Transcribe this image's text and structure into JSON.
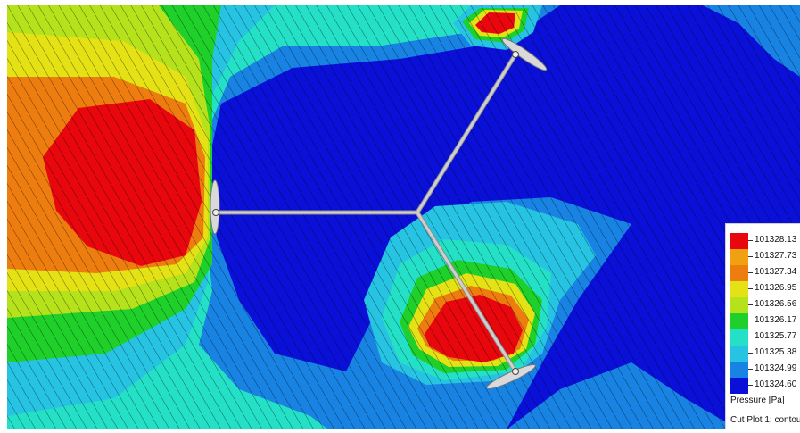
{
  "legend": {
    "values": [
      "101328.13",
      "101327.73",
      "101327.34",
      "101326.95",
      "101326.56",
      "101326.17",
      "101325.77",
      "101325.38",
      "101324.99",
      "101324.60"
    ],
    "colors": [
      "#e8070d",
      "#f0a010",
      "#ee7d10",
      "#e4e214",
      "#b6e21c",
      "#1fcf2a",
      "#24e0c6",
      "#26c4e2",
      "#1883e2",
      "#0a10d8"
    ],
    "unit": "Pressure [Pa]",
    "plot_label": "Cut Plot 1: contou"
  },
  "scene": {
    "rotor_hub": "hub",
    "blades": [
      "blade-left",
      "blade-top",
      "blade-bottom"
    ]
  }
}
